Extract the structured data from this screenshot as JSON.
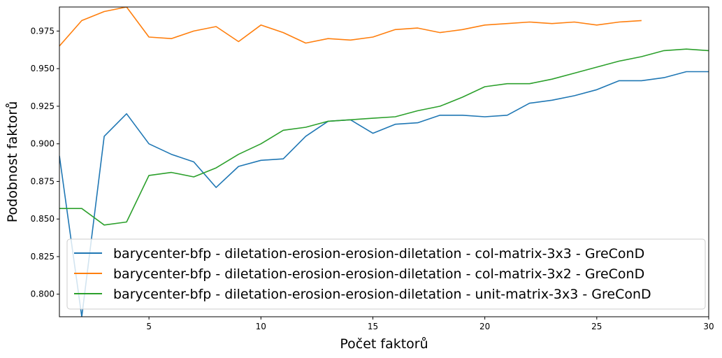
{
  "chart_data": {
    "type": "line",
    "xlabel": "Počet faktorů",
    "ylabel": "Podobnost faktorů",
    "xlim": [
      1,
      30
    ],
    "ylim": [
      0.785,
      0.991
    ],
    "xticks": [
      5,
      10,
      15,
      20,
      25,
      30
    ],
    "xtick_labels": [
      "5",
      "10",
      "15",
      "20",
      "25",
      "30"
    ],
    "yticks": [
      0.8,
      0.825,
      0.85,
      0.875,
      0.9,
      0.925,
      0.95,
      0.975
    ],
    "ytick_labels": [
      "0.800",
      "0.825",
      "0.850",
      "0.875",
      "0.900",
      "0.925",
      "0.950",
      "0.975"
    ],
    "grid": false,
    "legend_position": "lower-right",
    "series": [
      {
        "name": "barycenter-bfp - diletation-erosion-erosion-diletation - col-matrix-3x3 - GreConD",
        "color": "#1f77b4",
        "x": [
          1,
          2,
          3,
          4,
          5,
          6,
          7,
          8,
          9,
          10,
          11,
          12,
          13,
          14,
          15,
          16,
          17,
          18,
          19,
          20,
          21,
          22,
          23,
          24,
          25,
          26,
          27,
          28,
          29,
          30
        ],
        "values": [
          0.892,
          0.785,
          0.905,
          0.92,
          0.9,
          0.893,
          0.888,
          0.871,
          0.885,
          0.889,
          0.89,
          0.905,
          0.915,
          0.916,
          0.907,
          0.913,
          0.914,
          0.919,
          0.919,
          0.918,
          0.919,
          0.927,
          0.929,
          0.932,
          0.936,
          0.942,
          0.942,
          0.944,
          0.948,
          0.948
        ]
      },
      {
        "name": "barycenter-bfp - diletation-erosion-erosion-diletation - col-matrix-3x2 - GreConD",
        "color": "#ff7f0e",
        "x": [
          1,
          2,
          3,
          4,
          5,
          6,
          7,
          8,
          9,
          10,
          11,
          12,
          13,
          14,
          15,
          16,
          17,
          18,
          19,
          20,
          21,
          22,
          23,
          24,
          25,
          26,
          27
        ],
        "values": [
          0.965,
          0.982,
          0.988,
          0.991,
          0.971,
          0.97,
          0.975,
          0.978,
          0.968,
          0.979,
          0.974,
          0.967,
          0.97,
          0.969,
          0.971,
          0.976,
          0.977,
          0.974,
          0.976,
          0.979,
          0.98,
          0.981,
          0.98,
          0.981,
          0.979,
          0.981,
          0.982
        ]
      },
      {
        "name": "barycenter-bfp - diletation-erosion-erosion-diletation - unit-matrix-3x3 - GreConD",
        "color": "#2ca02c",
        "x": [
          1,
          2,
          3,
          4,
          5,
          6,
          7,
          8,
          9,
          10,
          11,
          12,
          13,
          14,
          15,
          16,
          17,
          18,
          19,
          20,
          21,
          22,
          23,
          24,
          25,
          26,
          27,
          28,
          29,
          30
        ],
        "values": [
          0.857,
          0.857,
          0.846,
          0.848,
          0.879,
          0.881,
          0.878,
          0.884,
          0.893,
          0.9,
          0.909,
          0.911,
          0.915,
          0.916,
          0.917,
          0.918,
          0.922,
          0.925,
          0.931,
          0.938,
          0.94,
          0.94,
          0.943,
          0.947,
          0.951,
          0.955,
          0.958,
          0.962,
          0.963,
          0.962
        ]
      }
    ]
  }
}
